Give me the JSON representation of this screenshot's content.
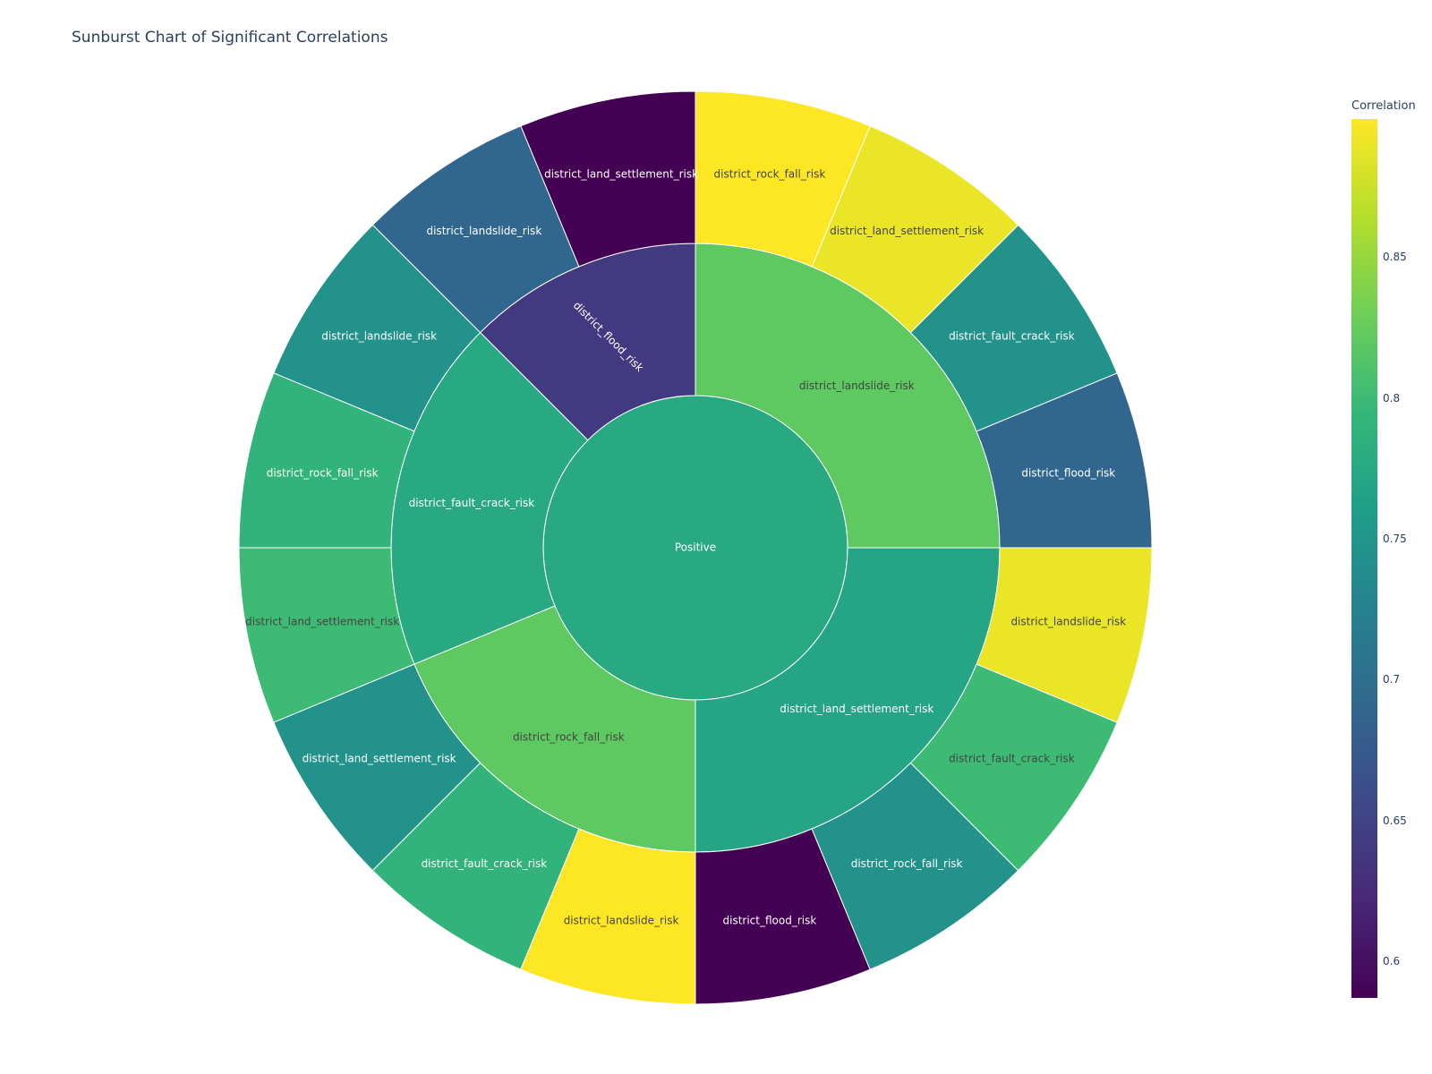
{
  "chart_data": {
    "type": "sunburst",
    "title": "Sunburst Chart of Significant Correlations",
    "colorbar": {
      "title": "Correlation",
      "range": [
        0.587,
        0.899
      ],
      "ticks": [
        "0.6",
        "0.65",
        "0.7",
        "0.75",
        "0.8",
        "0.85"
      ],
      "tick_values": [
        0.6,
        0.65,
        0.7,
        0.75,
        0.8,
        0.85
      ]
    },
    "root": {
      "label": "Positive",
      "value": 0.776
    },
    "groups": [
      {
        "label": "district_landslide_risk",
        "value": 0.82,
        "children": [
          {
            "label": "district_flood_risk",
            "value": 0.69
          },
          {
            "label": "district_fault_crack_risk",
            "value": 0.745
          },
          {
            "label": "district_land_settlement_risk",
            "value": 0.89
          },
          {
            "label": "district_rock_fall_risk",
            "value": 0.899
          }
        ]
      },
      {
        "label": "district_flood_risk",
        "value": 0.64,
        "children": [
          {
            "label": "district_land_settlement_risk",
            "value": 0.587
          },
          {
            "label": "district_landslide_risk",
            "value": 0.69
          }
        ]
      },
      {
        "label": "district_fault_crack_risk",
        "value": 0.775,
        "children": [
          {
            "label": "district_landslide_risk",
            "value": 0.745
          },
          {
            "label": "district_rock_fall_risk",
            "value": 0.79
          },
          {
            "label": "district_land_settlement_risk",
            "value": 0.8
          }
        ]
      },
      {
        "label": "district_rock_fall_risk",
        "value": 0.82,
        "children": [
          {
            "label": "district_land_settlement_risk",
            "value": 0.745
          },
          {
            "label": "district_fault_crack_risk",
            "value": 0.79
          },
          {
            "label": "district_landslide_risk",
            "value": 0.899
          }
        ]
      },
      {
        "label": "district_land_settlement_risk",
        "value": 0.77,
        "children": [
          {
            "label": "district_flood_risk",
            "value": 0.587
          },
          {
            "label": "district_rock_fall_risk",
            "value": 0.745
          },
          {
            "label": "district_fault_crack_risk",
            "value": 0.8
          },
          {
            "label": "district_landslide_risk",
            "value": 0.89
          }
        ]
      }
    ]
  }
}
